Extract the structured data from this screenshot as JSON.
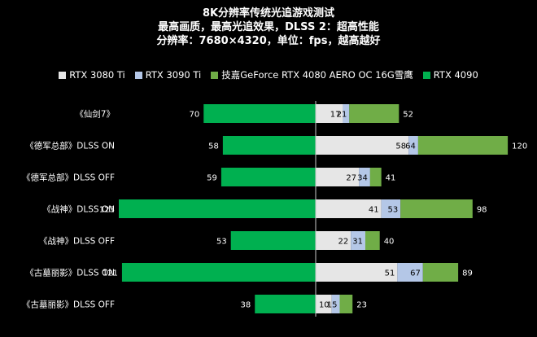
{
  "chart_data": {
    "type": "bar",
    "title": "8K分辨率传统光追游戏测试",
    "subtitle": [
      "最高画质，最高光追效果，DLSS 2：超高性能",
      "分辨率：7680×4320，单位：fps，越高越好"
    ],
    "categories": [
      "《仙剑7》",
      "《德军总部》DLSS ON",
      "《德军总部》DLSS OFF",
      "《战神》DLSS ON",
      "《战神》DLSS OFF",
      "《古墓丽影》DLSS ON",
      "《古墓丽影》DLSS OFF"
    ],
    "series": [
      {
        "name": "RTX 3080 Ti",
        "color": "#e6e6e6",
        "values": [
          17,
          58,
          27,
          41,
          22,
          51,
          10
        ]
      },
      {
        "name": "RTX 3090 Ti",
        "color": "#b4c7e7",
        "values": [
          21,
          64,
          34,
          53,
          31,
          67,
          15
        ]
      },
      {
        "name": "技嘉GeForce RTX 4080 AERO OC 16G雪鹰",
        "color": "#70ad47",
        "values": [
          52,
          120,
          41,
          98,
          40,
          89,
          23
        ]
      },
      {
        "name": "RTX 4090",
        "color": "#00b050",
        "values": [
          70,
          58,
          59,
          123,
          53,
          121,
          38
        ]
      }
    ],
    "layout_note": "RTX 4090 drawn extending left of the center axis; other series stacked cumulatively to the right, each reaching its own value",
    "grid": false,
    "legend": "top"
  }
}
